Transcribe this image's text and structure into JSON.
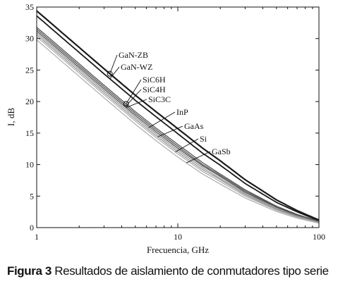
{
  "chart_data": {
    "type": "line",
    "xscale": "log",
    "xlabel": "Frecuencia, GHz",
    "ylabel": "I, dB",
    "xlim": [
      1,
      100
    ],
    "ylim": [
      0,
      35
    ],
    "xticks": [
      1,
      10,
      100
    ],
    "yticks": [
      0,
      5,
      10,
      15,
      20,
      25,
      30,
      35
    ],
    "grid": false,
    "colors": {
      "dark": "#1a1a1a",
      "mid": "#555555",
      "light": "#909090",
      "lighter": "#ababab"
    },
    "series": [
      {
        "name": "GaN-ZB",
        "x": [
          1,
          1.5,
          2,
          3,
          5,
          7,
          10,
          15,
          20,
          30,
          50,
          70,
          100
        ],
        "y": [
          34.4,
          31.0,
          28.6,
          25.2,
          21.0,
          18.4,
          15.7,
          12.6,
          10.6,
          7.6,
          4.4,
          2.7,
          1.2
        ]
      },
      {
        "name": "GaN-WZ",
        "x": [
          1,
          1.5,
          2,
          3,
          5,
          7,
          10,
          15,
          20,
          30,
          50,
          70,
          100
        ],
        "y": [
          33.6,
          30.2,
          27.8,
          24.4,
          20.2,
          17.6,
          14.9,
          11.8,
          9.9,
          7.0,
          4.0,
          2.5,
          1.1
        ]
      },
      {
        "name": "SiC6H",
        "x": [
          1,
          1.5,
          2,
          3,
          5,
          7,
          10,
          15,
          20,
          30,
          50,
          70,
          100
        ],
        "y": [
          31.8,
          28.4,
          26.0,
          22.6,
          18.4,
          15.8,
          13.2,
          10.3,
          8.5,
          6.0,
          3.4,
          2.1,
          1.0
        ]
      },
      {
        "name": "SiC4H",
        "x": [
          1,
          1.5,
          2,
          3,
          5,
          7,
          10,
          15,
          20,
          30,
          50,
          70,
          100
        ],
        "y": [
          31.5,
          28.1,
          25.7,
          22.3,
          18.1,
          15.5,
          12.9,
          10.0,
          8.3,
          5.8,
          3.3,
          2.0,
          0.95
        ]
      },
      {
        "name": "SiC3C",
        "x": [
          1,
          1.5,
          2,
          3,
          5,
          7,
          10,
          15,
          20,
          30,
          50,
          70,
          100
        ],
        "y": [
          31.2,
          27.8,
          25.4,
          22.0,
          17.8,
          15.2,
          12.6,
          9.8,
          8.1,
          5.6,
          3.2,
          1.95,
          0.9
        ]
      },
      {
        "name": "InP",
        "x": [
          1,
          1.5,
          2,
          3,
          5,
          7,
          10,
          15,
          20,
          30,
          50,
          70,
          100
        ],
        "y": [
          30.9,
          27.5,
          25.1,
          21.7,
          17.5,
          14.9,
          12.3,
          9.5,
          7.8,
          5.4,
          3.0,
          1.85,
          0.85
        ]
      },
      {
        "name": "GaAs",
        "x": [
          1,
          1.5,
          2,
          3,
          5,
          7,
          10,
          15,
          20,
          30,
          50,
          70,
          100
        ],
        "y": [
          30.6,
          27.2,
          24.8,
          21.4,
          17.2,
          14.6,
          12.0,
          9.2,
          7.6,
          5.2,
          2.9,
          1.75,
          0.8
        ]
      },
      {
        "name": "Si",
        "x": [
          1,
          1.5,
          2,
          3,
          5,
          7,
          10,
          15,
          20,
          30,
          50,
          70,
          100
        ],
        "y": [
          30.3,
          26.9,
          24.5,
          21.1,
          16.9,
          14.3,
          11.7,
          8.9,
          7.3,
          5.0,
          2.75,
          1.65,
          0.75
        ]
      },
      {
        "name": "GaSb",
        "x": [
          1,
          1.5,
          2,
          3,
          5,
          7,
          10,
          15,
          20,
          30,
          50,
          70,
          100
        ],
        "y": [
          29.8,
          26.4,
          24.0,
          20.6,
          16.4,
          13.8,
          11.2,
          8.5,
          6.9,
          4.7,
          2.55,
          1.5,
          0.7
        ]
      }
    ],
    "annotations": [
      {
        "text": "GaN-ZB",
        "series": "GaN-ZB",
        "at_x": 3.3,
        "marker": "circle"
      },
      {
        "text": "GaN-WZ",
        "series": "GaN-WZ",
        "at_x": 3.3
      },
      {
        "text": "SiC6H",
        "series": "SiC6H",
        "at_x": 4.3,
        "marker": "circle"
      },
      {
        "text": "SiC4H",
        "series": "SiC4H",
        "at_x": 4.3
      },
      {
        "text": "SiC3C",
        "series": "SiC3C",
        "at_x": 4.3
      },
      {
        "text": "InP",
        "series": "InP",
        "at_x": 6.2
      },
      {
        "text": "GaAs",
        "series": "GaAs",
        "at_x": 7.2
      },
      {
        "text": "Si",
        "series": "Si",
        "at_x": 9.6
      },
      {
        "text": "GaSb",
        "series": "GaSb",
        "at_x": 11.5
      }
    ]
  },
  "caption": {
    "label": "Figura 3",
    "text": "Resultados de aislamiento de conmutadores tipo serie"
  }
}
